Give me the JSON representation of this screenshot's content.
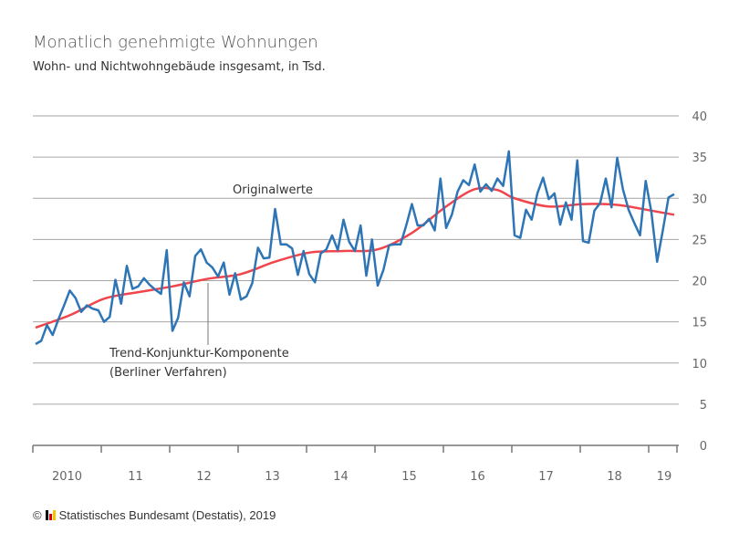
{
  "title": "Monatlich genehmigte Wohnungen",
  "subtitle": "Wohn- und Nichtwohngebäude insgesamt, in Tsd.",
  "footer": {
    "copyright": "©",
    "text": "Statistisches Bundesamt (Destatis), 2019"
  },
  "chart_data": {
    "type": "line",
    "title": "Monatlich genehmigte Wohnungen",
    "subtitle": "Wohn- und Nichtwohngebäude insgesamt, in Tsd.",
    "ylim": [
      0,
      40
    ],
    "yticks": [
      "0",
      "5",
      "10",
      "15",
      "20",
      "25",
      "30",
      "35",
      "40"
    ],
    "xticks": [
      "2010",
      "11",
      "12",
      "13",
      "14",
      "15",
      "16",
      "17",
      "18",
      "19"
    ],
    "grid": true,
    "x_start": "2010-01",
    "x_frequency": "monthly",
    "series": [
      {
        "name": "Originalwerte",
        "color": "#2e75b6",
        "values": [
          12.3,
          12.7,
          14.6,
          13.4,
          15.3,
          17.0,
          18.8,
          17.9,
          16.2,
          17.0,
          16.6,
          16.4,
          15.0,
          15.6,
          20.1,
          17.2,
          21.8,
          19.0,
          19.3,
          20.3,
          19.5,
          18.9,
          18.4,
          23.7,
          13.9,
          15.5,
          19.8,
          18.1,
          23.0,
          23.8,
          22.2,
          21.6,
          20.5,
          22.2,
          18.3,
          20.9,
          17.7,
          18.1,
          19.7,
          24.0,
          22.7,
          22.8,
          28.7,
          24.4,
          24.4,
          23.9,
          20.7,
          23.6,
          20.8,
          19.8,
          23.3,
          23.8,
          25.5,
          23.7,
          27.4,
          24.7,
          23.6,
          26.7,
          20.6,
          25.0,
          19.4,
          21.3,
          24.3,
          24.4,
          24.4,
          26.7,
          29.3,
          26.7,
          26.7,
          27.5,
          26.1,
          32.4,
          26.4,
          28.0,
          30.8,
          32.2,
          31.6,
          34.1,
          30.8,
          31.7,
          30.9,
          32.4,
          31.5,
          35.7,
          25.5,
          25.2,
          28.6,
          27.4,
          30.6,
          32.5,
          29.9,
          30.6,
          26.8,
          29.5,
          27.4,
          34.6,
          24.8,
          24.6,
          28.5,
          29.4,
          32.4,
          28.9,
          34.9,
          31.1,
          28.6,
          27.0,
          25.5,
          32.1,
          28.3,
          22.3,
          26.1,
          30.1,
          30.5
        ]
      },
      {
        "name": "Trend-Konjunktur-Komponente (Berliner Verfahren)",
        "color": "#f0454b",
        "points": [
          [
            "2010-01",
            14.3
          ],
          [
            "2010-07",
            15.8
          ],
          [
            "2011-01",
            17.8
          ],
          [
            "2011-07",
            18.6
          ],
          [
            "2012-01",
            19.3
          ],
          [
            "2012-07",
            20.2
          ],
          [
            "2013-01",
            20.8
          ],
          [
            "2013-07",
            22.3
          ],
          [
            "2014-01",
            23.4
          ],
          [
            "2014-07",
            23.6
          ],
          [
            "2015-01",
            23.8
          ],
          [
            "2015-07",
            25.8
          ],
          [
            "2016-01",
            29.0
          ],
          [
            "2016-06",
            31.1
          ],
          [
            "2016-10",
            31.0
          ],
          [
            "2017-01",
            30.0
          ],
          [
            "2017-07",
            29.0
          ],
          [
            "2018-01",
            29.3
          ],
          [
            "2018-07",
            29.2
          ],
          [
            "2019-01",
            28.5
          ],
          [
            "2019-05",
            28.0
          ]
        ]
      }
    ],
    "annotations": {
      "original": "Originalwerte",
      "trend_line1": "Trend-Konjunktur-Komponente",
      "trend_line2": "(Berliner Verfahren)"
    }
  }
}
